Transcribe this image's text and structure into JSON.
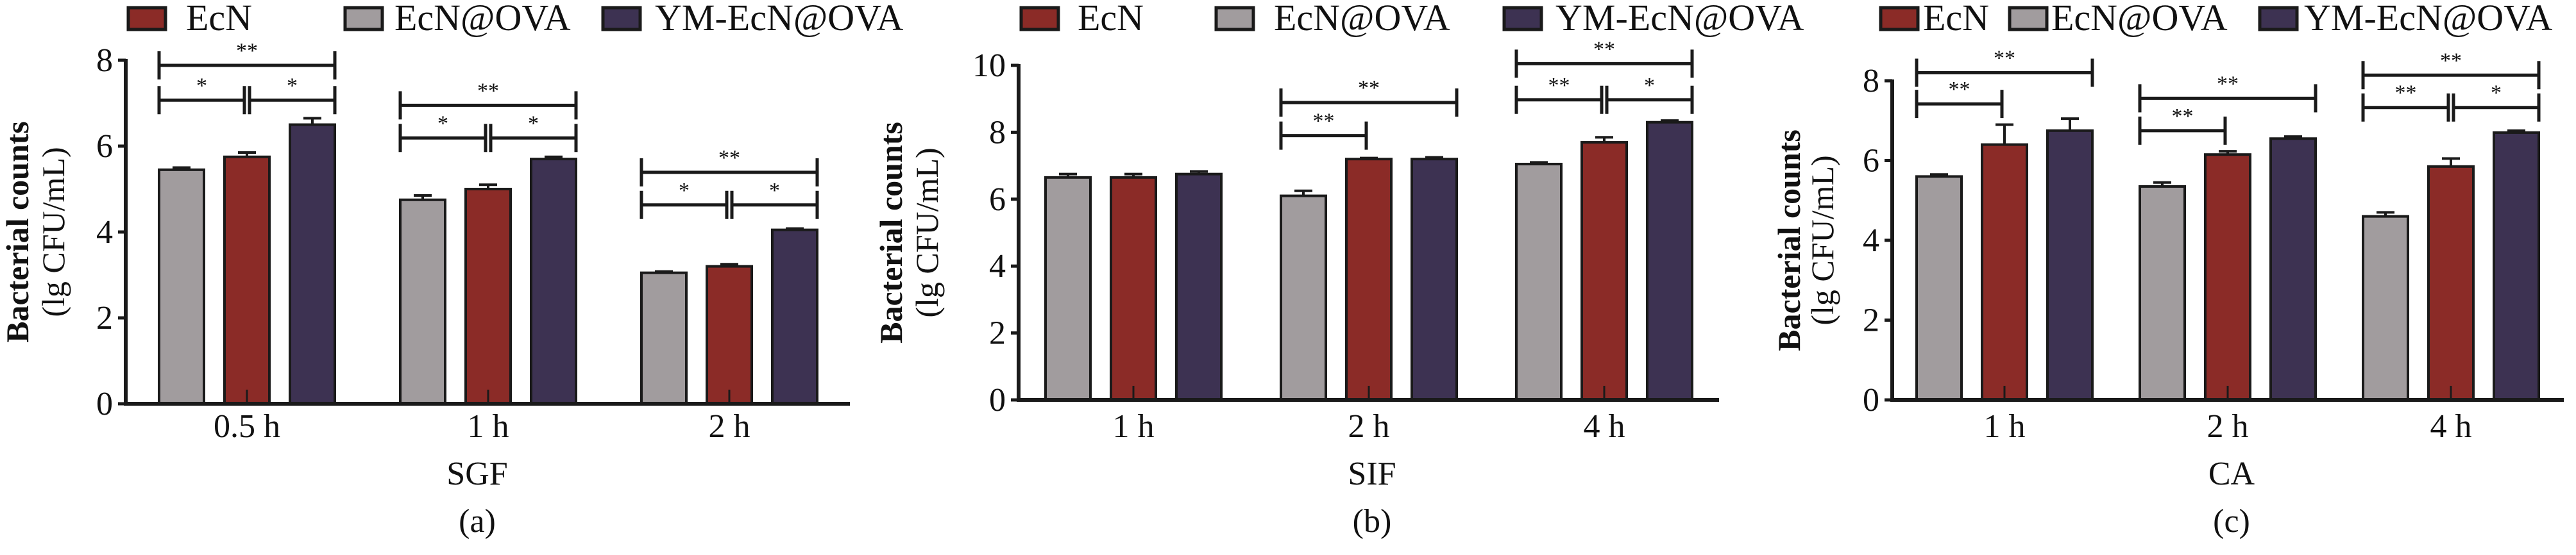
{
  "chart_data": [
    {
      "type": "bar",
      "panel_label": "(a)",
      "xlabel": "SGF",
      "ylabel": [
        "Bacterial counts",
        "(lg CFU/mL)"
      ],
      "ylim": [
        0,
        8
      ],
      "yticks": [
        "0",
        "2",
        "4",
        "6",
        "8"
      ],
      "categories": [
        "0.5 h",
        "1 h",
        "2 h"
      ],
      "series": [
        {
          "name": "EcN@OVA",
          "values": [
            5.45,
            4.75,
            3.05
          ],
          "errors": [
            0.05,
            0.1,
            0.03
          ]
        },
        {
          "name": "EcN",
          "values": [
            5.75,
            5.0,
            3.2
          ],
          "errors": [
            0.1,
            0.1,
            0.05
          ]
        },
        {
          "name": "YM-EcN@OVA",
          "values": [
            6.5,
            5.7,
            4.05
          ],
          "errors": [
            0.15,
            0.05,
            0.03
          ]
        }
      ],
      "significance": [
        {
          "group": 0,
          "from": 0,
          "to": 2,
          "label": "**",
          "level": 7.88
        },
        {
          "group": 0,
          "from": 0,
          "to": 1,
          "label": "*",
          "level": 7.07
        },
        {
          "group": 0,
          "from": 1,
          "to": 2,
          "label": "*",
          "level": 7.07
        },
        {
          "group": 1,
          "from": 0,
          "to": 2,
          "label": "**",
          "level": 6.95
        },
        {
          "group": 1,
          "from": 0,
          "to": 1,
          "label": "*",
          "level": 6.19
        },
        {
          "group": 1,
          "from": 1,
          "to": 2,
          "label": "*",
          "level": 6.19
        },
        {
          "group": 2,
          "from": 0,
          "to": 2,
          "label": "**",
          "level": 5.39
        },
        {
          "group": 2,
          "from": 0,
          "to": 1,
          "label": "*",
          "level": 4.63
        },
        {
          "group": 2,
          "from": 1,
          "to": 2,
          "label": "*",
          "level": 4.63
        }
      ]
    },
    {
      "type": "bar",
      "panel_label": "(b)",
      "xlabel": "SIF",
      "ylabel": [
        "Bacterial counts",
        "(lg CFU/mL)"
      ],
      "ylim": [
        0,
        10
      ],
      "yticks": [
        "0",
        "2",
        "4",
        "6",
        "8",
        "10"
      ],
      "categories": [
        "1 h",
        "2 h",
        "4 h"
      ],
      "series": [
        {
          "name": "EcN@OVA",
          "values": [
            6.65,
            6.1,
            7.05
          ],
          "errors": [
            0.1,
            0.15,
            0.05
          ]
        },
        {
          "name": "EcN",
          "values": [
            6.65,
            7.2,
            7.7
          ],
          "errors": [
            0.1,
            0.03,
            0.15
          ]
        },
        {
          "name": "YM-EcN@OVA",
          "values": [
            6.75,
            7.2,
            8.3
          ],
          "errors": [
            0.08,
            0.05,
            0.05
          ]
        }
      ],
      "significance": [
        {
          "group": 1,
          "from": 0,
          "to": 2,
          "label": "**",
          "level": 8.89
        },
        {
          "group": 1,
          "from": 0,
          "to": 1,
          "label": "**",
          "level": 7.9
        },
        {
          "group": 2,
          "from": 0,
          "to": 2,
          "label": "**",
          "level": 10.05
        },
        {
          "group": 2,
          "from": 0,
          "to": 1,
          "label": "**",
          "level": 8.97
        },
        {
          "group": 2,
          "from": 1,
          "to": 2,
          "label": "*",
          "level": 8.97
        }
      ]
    },
    {
      "type": "bar",
      "panel_label": "(c)",
      "xlabel": "CA",
      "ylabel": [
        "Bacterial counts",
        "(lg CFU/mL)"
      ],
      "ylim": [
        0,
        8
      ],
      "yticks": [
        "0",
        "2",
        "4",
        "6",
        "8"
      ],
      "categories": [
        "1 h",
        "2 h",
        "4 h"
      ],
      "series": [
        {
          "name": "EcN@OVA",
          "values": [
            5.6,
            5.35,
            4.6
          ],
          "errors": [
            0.05,
            0.1,
            0.1
          ]
        },
        {
          "name": "EcN",
          "values": [
            6.4,
            6.15,
            5.85
          ],
          "errors": [
            0.5,
            0.08,
            0.2
          ]
        },
        {
          "name": "YM-EcN@OVA",
          "values": [
            6.75,
            6.55,
            6.7
          ],
          "errors": [
            0.3,
            0.05,
            0.05
          ]
        }
      ],
      "significance": [
        {
          "group": 0,
          "from": 0,
          "to": 2,
          "label": "**",
          "level": 8.2
        },
        {
          "group": 0,
          "from": 0,
          "to": 1,
          "label": "**",
          "level": 7.42
        },
        {
          "group": 1,
          "from": 0,
          "to": 2,
          "label": "**",
          "level": 7.56
        },
        {
          "group": 1,
          "from": 0,
          "to": 1,
          "label": "**",
          "level": 6.75
        },
        {
          "group": 2,
          "from": 0,
          "to": 2,
          "label": "**",
          "level": 8.14
        },
        {
          "group": 2,
          "from": 0,
          "to": 1,
          "label": "**",
          "level": 7.33
        },
        {
          "group": 2,
          "from": 1,
          "to": 2,
          "label": "*",
          "level": 7.33
        }
      ]
    }
  ],
  "legend": [
    {
      "name": "EcN",
      "color": "#8b2b27"
    },
    {
      "name": "EcN@OVA",
      "color": "#a19c9e"
    },
    {
      "name": "YM-EcN@OVA",
      "color": "#3d3252"
    }
  ],
  "series_colors": {
    "EcN@OVA": "#a19c9e",
    "EcN": "#8b2b27",
    "YM-EcN@OVA": "#3d3252"
  }
}
